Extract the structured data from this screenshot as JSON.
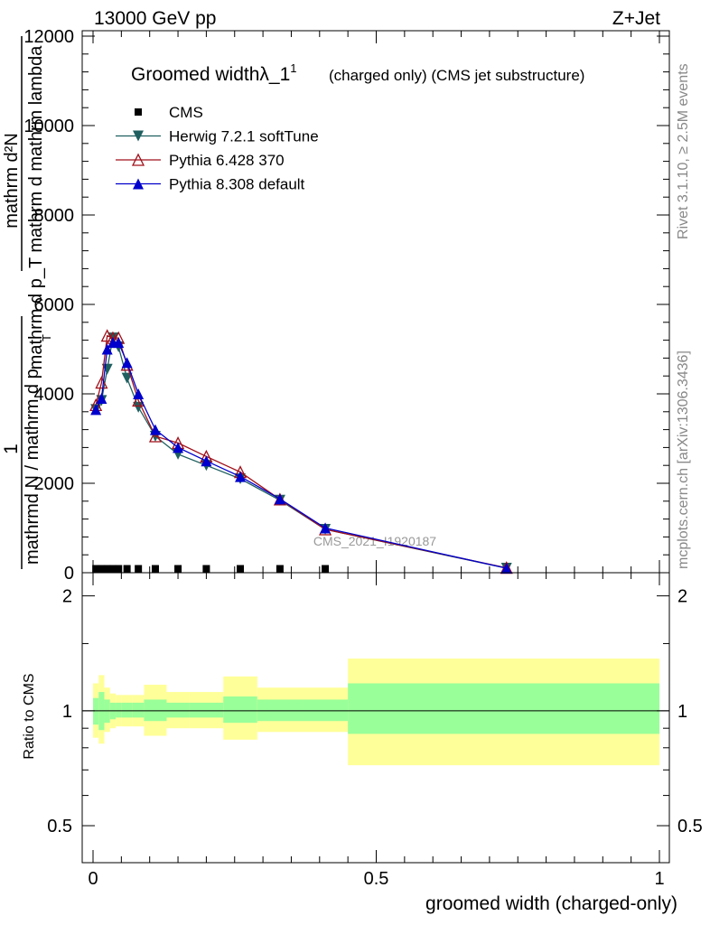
{
  "header": {
    "left": "13000 GeV pp",
    "right": "Z+Jet"
  },
  "side": {
    "rivet": "Rivet 3.1.10, ≥ 2.5M events",
    "mcplots": "mcplots.cern.ch [arXiv:1306.3436]"
  },
  "watermark": "CMS_2021_I1920187",
  "chart_data": [
    {
      "type": "line",
      "title": "Groomed widthλ_1",
      "title_sup": "1",
      "subtitle": "(charged only) (CMS jet substructure)",
      "ylabel_parts": {
        "one": "1",
        "numerator": "mathrm d²N",
        "denominator_top": "mathrm d p_T mathrm d mathrm lambda",
        "denominator_bottom": "mathrmd N / mathrm d p",
        "sub": "T"
      },
      "xlim": [
        0,
        1
      ],
      "ylim": [
        0,
        12000
      ],
      "yticks": [
        0,
        2000,
        4000,
        6000,
        8000,
        10000,
        12000
      ],
      "ytick_labels": [
        "0",
        "2000",
        "4000",
        "6000",
        "8000",
        "10000",
        "12000"
      ],
      "legend": [
        {
          "name": "CMS",
          "color": "#000000",
          "marker": "square"
        },
        {
          "name": "Herwig 7.2.1 softTune",
          "color": "#1f5f5f",
          "marker": "triangle-down"
        },
        {
          "name": "Pythia 6.428 370",
          "color": "#a0101a",
          "marker": "triangle-open"
        },
        {
          "name": "Pythia 8.308 default",
          "color": "#0000cc",
          "marker": "triangle-up"
        }
      ],
      "legend_position": "top-left",
      "cms": {
        "x": [
          0.005,
          0.015,
          0.025,
          0.035,
          0.045,
          0.06,
          0.08,
          0.11,
          0.15,
          0.2,
          0.26,
          0.33,
          0.41,
          0.73
        ],
        "y": [
          50,
          50,
          50,
          50,
          50,
          50,
          50,
          50,
          50,
          50,
          50,
          50,
          50,
          0
        ]
      },
      "series": [
        {
          "name": "Herwig 7.2.1 softTune",
          "x": [
            0.005,
            0.015,
            0.025,
            0.035,
            0.045,
            0.06,
            0.08,
            0.11,
            0.15,
            0.2,
            0.26,
            0.33,
            0.41,
            0.73
          ],
          "y": [
            3650,
            3850,
            4550,
            5250,
            5050,
            4350,
            3700,
            3050,
            2650,
            2400,
            2100,
            1620,
            970,
            100
          ]
        },
        {
          "name": "Pythia 6.428 370",
          "x": [
            0.005,
            0.015,
            0.025,
            0.035,
            0.045,
            0.06,
            0.08,
            0.11,
            0.15,
            0.2,
            0.26,
            0.33,
            0.41,
            0.73
          ],
          "y": [
            3750,
            4250,
            5300,
            5250,
            5250,
            4650,
            3850,
            3050,
            2900,
            2600,
            2250,
            1640,
            970,
            110
          ]
        },
        {
          "name": "Pythia 8.308 default",
          "x": [
            0.005,
            0.015,
            0.025,
            0.035,
            0.045,
            0.06,
            0.08,
            0.11,
            0.15,
            0.2,
            0.26,
            0.33,
            0.41,
            0.73
          ],
          "y": [
            3650,
            3900,
            5000,
            5150,
            5150,
            4700,
            4000,
            3200,
            2800,
            2500,
            2150,
            1650,
            1000,
            100
          ]
        }
      ]
    },
    {
      "type": "area",
      "ylabel": "Ratio to CMS",
      "xlabel": "groomed width (charged-only)",
      "xlim": [
        0,
        1
      ],
      "ylim": [
        0.4,
        2.3
      ],
      "log_y": true,
      "yticks": [
        0.5,
        1,
        2
      ],
      "ytick_labels": [
        "0.5",
        "1",
        "2"
      ],
      "xticks": [
        0,
        0.5,
        1
      ],
      "xtick_labels": [
        "0",
        "0.5",
        "1"
      ],
      "bins": {
        "edges": [
          0,
          0.01,
          0.02,
          0.03,
          0.04,
          0.05,
          0.07,
          0.09,
          0.13,
          0.17,
          0.23,
          0.29,
          0.37,
          0.45,
          1.0
        ],
        "inner_lo": [
          0.92,
          0.89,
          0.93,
          0.95,
          0.96,
          0.96,
          0.96,
          0.94,
          0.96,
          0.96,
          0.93,
          0.94,
          0.94,
          0.87
        ],
        "inner_hi": [
          1.08,
          1.12,
          1.07,
          1.05,
          1.05,
          1.05,
          1.05,
          1.07,
          1.05,
          1.05,
          1.09,
          1.07,
          1.07,
          1.18
        ],
        "outer_lo": [
          0.85,
          0.82,
          0.88,
          0.9,
          0.91,
          0.91,
          0.91,
          0.86,
          0.9,
          0.9,
          0.84,
          0.88,
          0.88,
          0.72
        ],
        "outer_hi": [
          1.18,
          1.24,
          1.15,
          1.11,
          1.1,
          1.1,
          1.1,
          1.17,
          1.12,
          1.12,
          1.23,
          1.15,
          1.15,
          1.37
        ]
      },
      "band_colors": {
        "inner": "#99ff99",
        "outer": "#ffff99"
      }
    }
  ]
}
